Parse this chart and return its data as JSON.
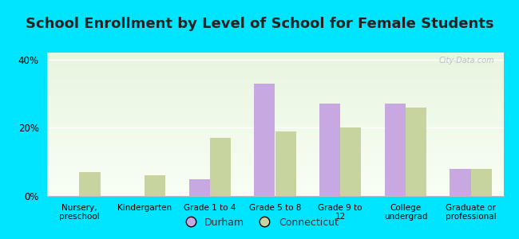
{
  "title": "School Enrollment by Level of School for Female Students",
  "categories": [
    "Nursery,\npreschool",
    "Kindergarten",
    "Grade 1 to 4",
    "Grade 5 to 8",
    "Grade 9 to\n12",
    "College\nundergrad",
    "Graduate or\nprofessional"
  ],
  "durham": [
    0,
    0,
    5,
    33,
    27,
    27,
    8
  ],
  "connecticut": [
    7,
    6,
    17,
    19,
    20,
    26,
    8
  ],
  "durham_color": "#c8a8e0",
  "connecticut_color": "#c8d4a0",
  "background_color": "#00e5ff",
  "plot_bg_top": "#e8f5e0",
  "plot_bg_bottom": "#f8fff5",
  "ylabel_ticks": [
    "0%",
    "20%",
    "40%"
  ],
  "yticks": [
    0,
    20,
    40
  ],
  "ylim": [
    0,
    42
  ],
  "bar_width": 0.32,
  "title_fontsize": 13,
  "legend_durham": "Durham",
  "legend_connecticut": "Connecticut",
  "watermark": "City-Data.com"
}
